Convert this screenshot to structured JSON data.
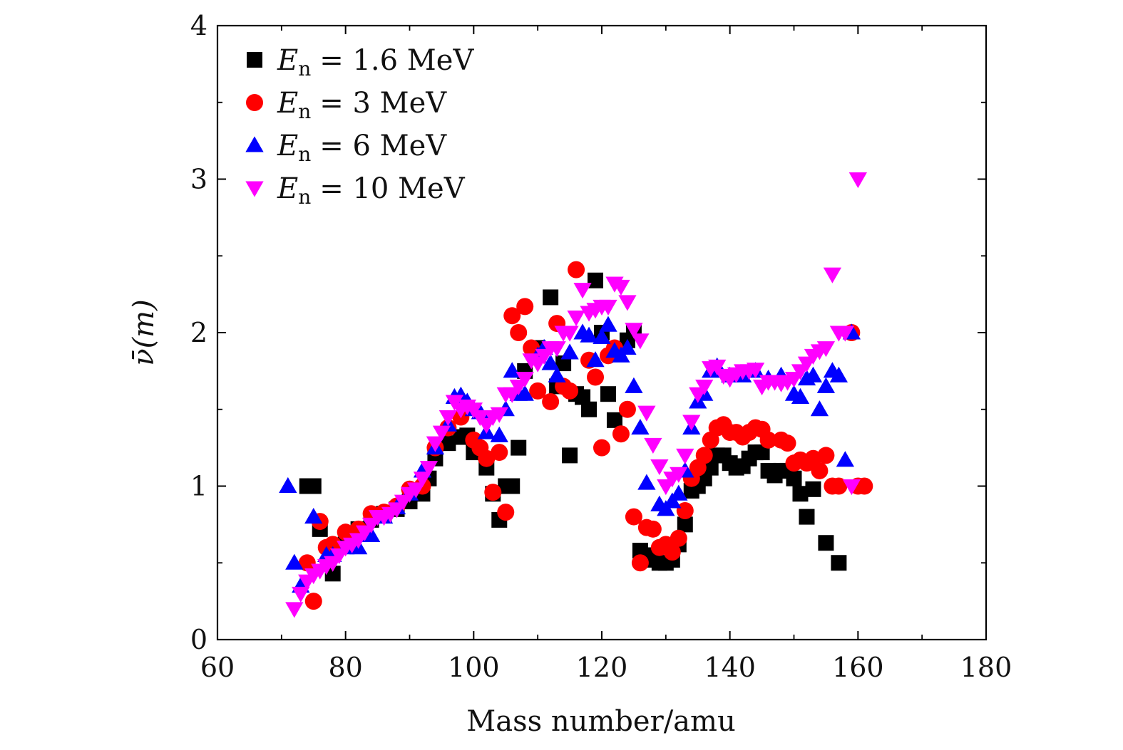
{
  "chart_data": {
    "type": "scatter",
    "title": "",
    "xlabel": "Mass number/amu",
    "ylabel": "ν̄(m)",
    "xlim": [
      60,
      180
    ],
    "ylim": [
      0,
      4
    ],
    "x_ticks": [
      60,
      80,
      100,
      120,
      140,
      160,
      180
    ],
    "y_ticks": [
      0,
      1,
      2,
      3,
      4
    ],
    "legend_position": "top-left",
    "series": [
      {
        "name": "E_n = 1.6 MeV",
        "legend_main": "E",
        "legend_sub": "n",
        "legend_rest": "= 1.6 MeV",
        "marker": "square",
        "color": "#000000",
        "points": [
          [
            74,
            1.0
          ],
          [
            75,
            1.0
          ],
          [
            76,
            0.72
          ],
          [
            78,
            0.43
          ],
          [
            80,
            0.62
          ],
          [
            82,
            0.72
          ],
          [
            84,
            0.78
          ],
          [
            86,
            0.82
          ],
          [
            88,
            0.85
          ],
          [
            90,
            0.9
          ],
          [
            92,
            0.95
          ],
          [
            93,
            1.05
          ],
          [
            94,
            1.18
          ],
          [
            96,
            1.28
          ],
          [
            98,
            1.32
          ],
          [
            99,
            1.33
          ],
          [
            100,
            1.22
          ],
          [
            102,
            1.12
          ],
          [
            103,
            0.95
          ],
          [
            104,
            0.78
          ],
          [
            105,
            1.0
          ],
          [
            106,
            1.0
          ],
          [
            107,
            1.25
          ],
          [
            108,
            1.75
          ],
          [
            110,
            1.9
          ],
          [
            112,
            2.23
          ],
          [
            113,
            1.65
          ],
          [
            114,
            1.8
          ],
          [
            115,
            1.2
          ],
          [
            116,
            1.6
          ],
          [
            117,
            1.58
          ],
          [
            118,
            1.5
          ],
          [
            119,
            2.34
          ],
          [
            120,
            2.0
          ],
          [
            121,
            1.6
          ],
          [
            122,
            1.43
          ],
          [
            124,
            1.95
          ],
          [
            125,
            2.0
          ],
          [
            126,
            0.58
          ],
          [
            127,
            0.55
          ],
          [
            128,
            0.52
          ],
          [
            129,
            0.5
          ],
          [
            130,
            0.5
          ],
          [
            131,
            0.52
          ],
          [
            132,
            0.62
          ],
          [
            133,
            0.75
          ],
          [
            134,
            0.97
          ],
          [
            135,
            1.0
          ],
          [
            136,
            1.05
          ],
          [
            137,
            1.12
          ],
          [
            138,
            1.2
          ],
          [
            139,
            1.2
          ],
          [
            140,
            1.15
          ],
          [
            141,
            1.12
          ],
          [
            142,
            1.13
          ],
          [
            143,
            1.18
          ],
          [
            144,
            1.22
          ],
          [
            145,
            1.22
          ],
          [
            146,
            1.1
          ],
          [
            147,
            1.07
          ],
          [
            148,
            1.1
          ],
          [
            149,
            1.1
          ],
          [
            150,
            1.05
          ],
          [
            151,
            0.95
          ],
          [
            152,
            0.8
          ],
          [
            153,
            0.98
          ],
          [
            155,
            0.63
          ],
          [
            157,
            0.5
          ]
        ]
      },
      {
        "name": "E_n = 3 MeV",
        "legend_main": "E",
        "legend_sub": "n",
        "legend_rest": "= 3 MeV",
        "marker": "circle",
        "color": "#ff0000",
        "points": [
          [
            74,
            0.5
          ],
          [
            75,
            0.25
          ],
          [
            76,
            0.77
          ],
          [
            77,
            0.6
          ],
          [
            78,
            0.62
          ],
          [
            80,
            0.7
          ],
          [
            82,
            0.72
          ],
          [
            84,
            0.82
          ],
          [
            86,
            0.83
          ],
          [
            88,
            0.87
          ],
          [
            90,
            0.98
          ],
          [
            92,
            1.0
          ],
          [
            94,
            1.25
          ],
          [
            96,
            1.38
          ],
          [
            98,
            1.45
          ],
          [
            100,
            1.3
          ],
          [
            101,
            1.25
          ],
          [
            102,
            1.18
          ],
          [
            103,
            0.96
          ],
          [
            104,
            1.22
          ],
          [
            105,
            0.83
          ],
          [
            106,
            2.11
          ],
          [
            107,
            2.0
          ],
          [
            108,
            2.17
          ],
          [
            109,
            1.9
          ],
          [
            110,
            1.62
          ],
          [
            112,
            1.55
          ],
          [
            113,
            2.06
          ],
          [
            114,
            1.65
          ],
          [
            115,
            1.62
          ],
          [
            116,
            2.41
          ],
          [
            118,
            1.82
          ],
          [
            119,
            1.71
          ],
          [
            120,
            1.25
          ],
          [
            121,
            1.85
          ],
          [
            122,
            1.9
          ],
          [
            123,
            1.34
          ],
          [
            124,
            1.5
          ],
          [
            125,
            0.8
          ],
          [
            126,
            0.5
          ],
          [
            127,
            0.73
          ],
          [
            128,
            0.72
          ],
          [
            129,
            0.6
          ],
          [
            130,
            0.62
          ],
          [
            131,
            0.57
          ],
          [
            132,
            0.66
          ],
          [
            133,
            0.84
          ],
          [
            134,
            1.05
          ],
          [
            135,
            1.12
          ],
          [
            136,
            1.2
          ],
          [
            137,
            1.3
          ],
          [
            138,
            1.38
          ],
          [
            139,
            1.4
          ],
          [
            140,
            1.35
          ],
          [
            141,
            1.35
          ],
          [
            142,
            1.32
          ],
          [
            143,
            1.35
          ],
          [
            144,
            1.38
          ],
          [
            145,
            1.37
          ],
          [
            146,
            1.3
          ],
          [
            148,
            1.3
          ],
          [
            149,
            1.28
          ],
          [
            150,
            1.15
          ],
          [
            151,
            1.17
          ],
          [
            152,
            1.15
          ],
          [
            153,
            1.18
          ],
          [
            154,
            1.1
          ],
          [
            155,
            1.2
          ],
          [
            156,
            1.0
          ],
          [
            157,
            1.0
          ],
          [
            159,
            2.0
          ],
          [
            160,
            1.0
          ],
          [
            161,
            1.0
          ]
        ]
      },
      {
        "name": "E_n = 6 MeV",
        "legend_main": "E",
        "legend_sub": "n",
        "legend_rest": "= 6 MeV",
        "marker": "triangle-up",
        "color": "#0000ff",
        "points": [
          [
            71,
            1.0
          ],
          [
            72,
            0.5
          ],
          [
            73,
            0.35
          ],
          [
            75,
            0.8
          ],
          [
            77,
            0.55
          ],
          [
            78,
            0.55
          ],
          [
            80,
            0.6
          ],
          [
            82,
            0.6
          ],
          [
            84,
            0.68
          ],
          [
            86,
            0.8
          ],
          [
            88,
            0.86
          ],
          [
            90,
            0.95
          ],
          [
            92,
            1.1
          ],
          [
            94,
            1.25
          ],
          [
            96,
            1.4
          ],
          [
            97,
            1.58
          ],
          [
            98,
            1.59
          ],
          [
            99,
            1.55
          ],
          [
            100,
            1.5
          ],
          [
            101,
            1.48
          ],
          [
            102,
            1.35
          ],
          [
            104,
            1.33
          ],
          [
            105,
            1.5
          ],
          [
            106,
            1.75
          ],
          [
            107,
            1.6
          ],
          [
            108,
            1.6
          ],
          [
            110,
            1.85
          ],
          [
            111,
            1.9
          ],
          [
            112,
            1.8
          ],
          [
            113,
            1.72
          ],
          [
            115,
            1.87
          ],
          [
            117,
            2.0
          ],
          [
            118,
            1.98
          ],
          [
            119,
            1.82
          ],
          [
            120,
            1.97
          ],
          [
            121,
            2.05
          ],
          [
            122,
            1.88
          ],
          [
            123,
            1.85
          ],
          [
            124,
            1.9
          ],
          [
            125,
            1.65
          ],
          [
            126,
            1.38
          ],
          [
            127,
            1.02
          ],
          [
            129,
            0.88
          ],
          [
            130,
            0.85
          ],
          [
            131,
            0.9
          ],
          [
            132,
            0.95
          ],
          [
            133,
            1.1
          ],
          [
            134,
            1.38
          ],
          [
            135,
            1.55
          ],
          [
            136,
            1.6
          ],
          [
            137,
            1.75
          ],
          [
            138,
            1.78
          ],
          [
            140,
            1.72
          ],
          [
            142,
            1.72
          ],
          [
            144,
            1.75
          ],
          [
            146,
            1.7
          ],
          [
            148,
            1.72
          ],
          [
            150,
            1.6
          ],
          [
            151,
            1.58
          ],
          [
            152,
            1.7
          ],
          [
            153,
            1.72
          ],
          [
            154,
            1.5
          ],
          [
            155,
            1.65
          ],
          [
            156,
            1.75
          ],
          [
            157,
            1.72
          ],
          [
            158,
            1.17
          ],
          [
            159,
            2.0
          ]
        ]
      },
      {
        "name": "E_n = 10 MeV",
        "legend_main": "E",
        "legend_sub": "n",
        "legend_rest": "= 10 MeV",
        "marker": "triangle-down",
        "color": "#ff00ff",
        "points": [
          [
            72,
            0.2
          ],
          [
            73,
            0.3
          ],
          [
            74,
            0.38
          ],
          [
            75,
            0.42
          ],
          [
            76,
            0.45
          ],
          [
            77,
            0.48
          ],
          [
            78,
            0.5
          ],
          [
            79,
            0.55
          ],
          [
            80,
            0.6
          ],
          [
            81,
            0.62
          ],
          [
            82,
            0.65
          ],
          [
            83,
            0.7
          ],
          [
            84,
            0.75
          ],
          [
            85,
            0.8
          ],
          [
            86,
            0.8
          ],
          [
            87,
            0.82
          ],
          [
            88,
            0.85
          ],
          [
            89,
            0.9
          ],
          [
            90,
            0.95
          ],
          [
            91,
            0.98
          ],
          [
            92,
            1.05
          ],
          [
            93,
            1.12
          ],
          [
            94,
            1.28
          ],
          [
            95,
            1.35
          ],
          [
            96,
            1.45
          ],
          [
            97,
            1.55
          ],
          [
            98,
            1.5
          ],
          [
            99,
            1.52
          ],
          [
            100,
            1.5
          ],
          [
            101,
            1.45
          ],
          [
            102,
            1.4
          ],
          [
            103,
            1.45
          ],
          [
            104,
            1.47
          ],
          [
            105,
            1.6
          ],
          [
            106,
            1.6
          ],
          [
            107,
            1.65
          ],
          [
            108,
            1.7
          ],
          [
            109,
            1.82
          ],
          [
            110,
            1.8
          ],
          [
            111,
            1.85
          ],
          [
            112,
            1.9
          ],
          [
            113,
            1.9
          ],
          [
            114,
            2.0
          ],
          [
            115,
            2.0
          ],
          [
            116,
            2.1
          ],
          [
            117,
            2.28
          ],
          [
            118,
            2.13
          ],
          [
            119,
            2.15
          ],
          [
            120,
            2.17
          ],
          [
            121,
            2.17
          ],
          [
            122,
            2.32
          ],
          [
            123,
            2.3
          ],
          [
            124,
            2.2
          ],
          [
            125,
            2.02
          ],
          [
            126,
            1.95
          ],
          [
            127,
            1.48
          ],
          [
            128,
            1.27
          ],
          [
            129,
            1.13
          ],
          [
            130,
            1.0
          ],
          [
            131,
            1.05
          ],
          [
            132,
            1.08
          ],
          [
            133,
            1.2
          ],
          [
            134,
            1.42
          ],
          [
            135,
            1.6
          ],
          [
            136,
            1.65
          ],
          [
            137,
            1.77
          ],
          [
            138,
            1.78
          ],
          [
            139,
            1.72
          ],
          [
            140,
            1.7
          ],
          [
            141,
            1.73
          ],
          [
            142,
            1.75
          ],
          [
            143,
            1.75
          ],
          [
            144,
            1.76
          ],
          [
            145,
            1.65
          ],
          [
            146,
            1.68
          ],
          [
            147,
            1.68
          ],
          [
            148,
            1.67
          ],
          [
            149,
            1.68
          ],
          [
            150,
            1.7
          ],
          [
            151,
            1.75
          ],
          [
            152,
            1.8
          ],
          [
            153,
            1.85
          ],
          [
            154,
            1.88
          ],
          [
            155,
            1.9
          ],
          [
            156,
            2.38
          ],
          [
            157,
            2.0
          ],
          [
            158,
            2.0
          ],
          [
            159,
            1.0
          ],
          [
            160,
            3.0
          ]
        ]
      }
    ]
  }
}
